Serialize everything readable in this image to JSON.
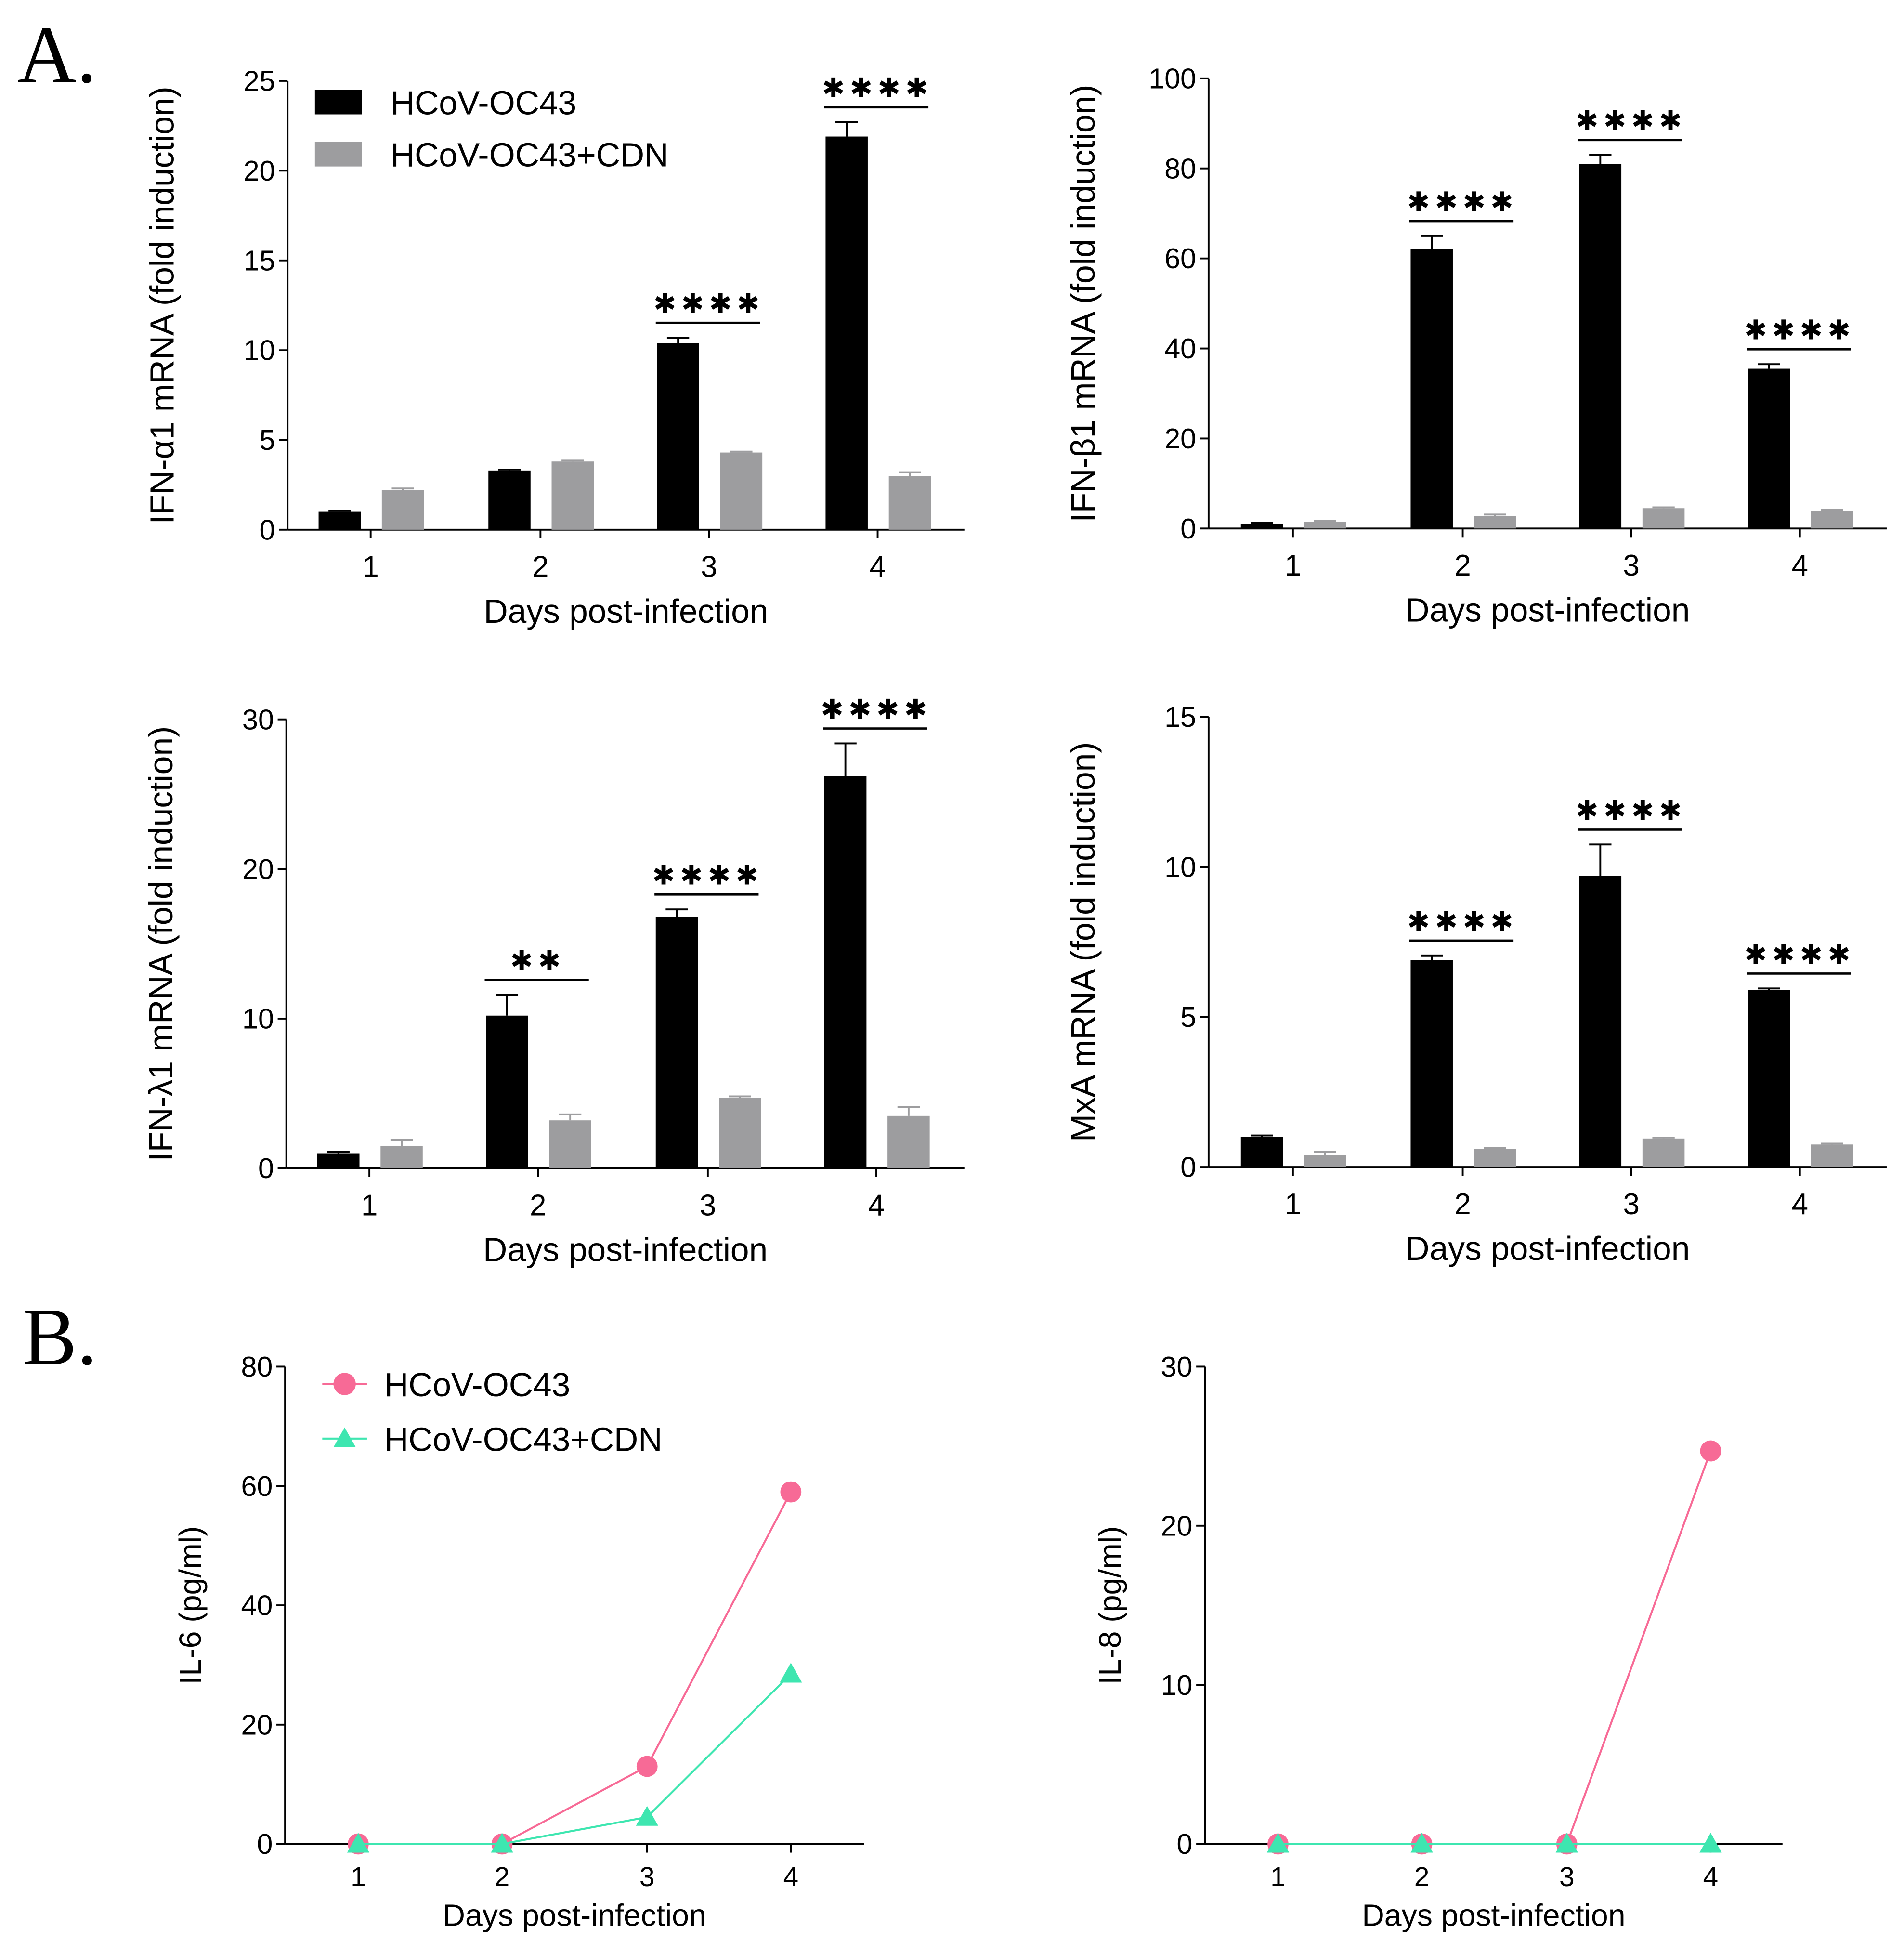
{
  "panel_labels": [
    "A.",
    "B."
  ],
  "colors": {
    "black_bar": "#000000",
    "gray_bar": "#9d9d9f",
    "pink": "#f76a96",
    "green": "#3ee6b0"
  },
  "chart_data": [
    {
      "type": "bar",
      "panel": "A",
      "title": "",
      "xlabel": "Days post-infection",
      "ylabel": "IFN-α1 mRNA (fold induction)",
      "categories": [
        "1",
        "2",
        "3",
        "4"
      ],
      "ylim": [
        0,
        25
      ],
      "yticks": [
        0,
        5,
        10,
        15,
        20,
        25
      ],
      "legend": "top-left",
      "series": [
        {
          "name": "HCoV-OC43",
          "values": [
            1.0,
            3.3,
            10.4,
            21.9
          ],
          "errors": [
            0.05,
            0.05,
            0.3,
            0.8
          ]
        },
        {
          "name": "HCoV-OC43+CDN",
          "values": [
            2.2,
            3.8,
            4.3,
            3.0
          ],
          "errors": [
            0.1,
            0.05,
            0.05,
            0.2
          ]
        }
      ],
      "significance": [
        null,
        null,
        "****",
        "****"
      ]
    },
    {
      "type": "bar",
      "panel": "A",
      "title": "",
      "xlabel": "Days post-infection",
      "ylabel": "IFN-β1 mRNA (fold induction)",
      "categories": [
        "1",
        "2",
        "3",
        "4"
      ],
      "ylim": [
        0,
        100
      ],
      "yticks": [
        0,
        20,
        40,
        60,
        80,
        100
      ],
      "series": [
        {
          "name": "HCoV-OC43",
          "values": [
            1.0,
            62,
            81,
            35.5
          ],
          "errors": [
            0.3,
            3,
            2,
            1
          ]
        },
        {
          "name": "HCoV-OC43+CDN",
          "values": [
            1.5,
            2.8,
            4.5,
            3.8
          ],
          "errors": [
            0.2,
            0.3,
            0.2,
            0.3
          ]
        }
      ],
      "significance": [
        null,
        "****",
        "****",
        "****"
      ]
    },
    {
      "type": "bar",
      "panel": "A",
      "title": "",
      "xlabel": "Days post-infection",
      "ylabel": "IFN-λ1 mRNA (fold induction)",
      "categories": [
        "1",
        "2",
        "3",
        "4"
      ],
      "ylim": [
        0,
        30
      ],
      "yticks": [
        0,
        10,
        20,
        30
      ],
      "series": [
        {
          "name": "HCoV-OC43",
          "values": [
            1.0,
            10.2,
            16.8,
            26.2
          ],
          "errors": [
            0.1,
            1.4,
            0.5,
            2.2
          ]
        },
        {
          "name": "HCoV-OC43+CDN",
          "values": [
            1.5,
            3.2,
            4.7,
            3.5
          ],
          "errors": [
            0.4,
            0.4,
            0.1,
            0.6
          ]
        }
      ],
      "significance": [
        null,
        "**",
        "****",
        "****"
      ]
    },
    {
      "type": "bar",
      "panel": "A",
      "title": "",
      "xlabel": "Days post-infection",
      "ylabel": "MxA mRNA (fold induction)",
      "categories": [
        "1",
        "2",
        "3",
        "4"
      ],
      "ylim": [
        0,
        15
      ],
      "yticks": [
        0,
        5,
        10,
        15
      ],
      "series": [
        {
          "name": "HCoV-OC43",
          "values": [
            1.0,
            6.9,
            9.7,
            5.9
          ],
          "errors": [
            0.05,
            0.15,
            1.05,
            0.05
          ]
        },
        {
          "name": "HCoV-OC43+CDN",
          "values": [
            0.4,
            0.6,
            0.95,
            0.75
          ],
          "errors": [
            0.1,
            0.03,
            0.03,
            0.03
          ]
        }
      ],
      "significance": [
        null,
        "****",
        "****",
        "****"
      ]
    },
    {
      "type": "line",
      "panel": "B",
      "title": "",
      "xlabel": "Days post-infection",
      "ylabel": "IL-6 (pg/ml)",
      "x": [
        1,
        2,
        3,
        4
      ],
      "ylim": [
        0,
        80
      ],
      "yticks": [
        0,
        20,
        40,
        60,
        80
      ],
      "legend": "top-left",
      "series": [
        {
          "name": "HCoV-OC43",
          "values": [
            0,
            0,
            13,
            59
          ],
          "marker": "circle"
        },
        {
          "name": "HCoV-OC43+CDN",
          "values": [
            0,
            0,
            4.5,
            28.5
          ],
          "marker": "triangle"
        }
      ]
    },
    {
      "type": "line",
      "panel": "B",
      "title": "",
      "xlabel": "Days post-infection",
      "ylabel": "IL-8 (pg/ml)",
      "x": [
        1,
        2,
        3,
        4
      ],
      "ylim": [
        0,
        30
      ],
      "yticks": [
        0,
        10,
        20,
        30
      ],
      "series": [
        {
          "name": "HCoV-OC43",
          "values": [
            0,
            0,
            0,
            24.7
          ],
          "marker": "circle"
        },
        {
          "name": "HCoV-OC43+CDN",
          "values": [
            0,
            0,
            0,
            0
          ],
          "marker": "triangle"
        }
      ]
    }
  ]
}
